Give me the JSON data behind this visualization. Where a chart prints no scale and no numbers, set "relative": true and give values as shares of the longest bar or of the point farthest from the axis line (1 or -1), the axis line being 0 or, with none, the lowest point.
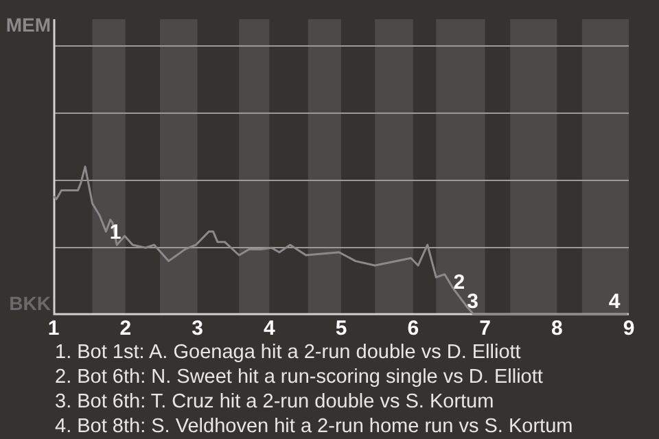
{
  "chart_data": {
    "type": "line",
    "relative": true,
    "x": [
      1,
      1.04,
      1.11,
      1.34,
      1.38,
      1.44,
      1.5,
      1.54,
      1.64,
      1.73,
      1.79,
      1.82,
      1.88,
      1.99,
      2.1,
      2.28,
      2.4,
      2.6,
      2.83,
      2.98,
      3.16,
      3.22,
      3.28,
      3.38,
      3.58,
      3.72,
      3.88,
      4.03,
      4.14,
      4.29,
      4.51,
      4.97,
      5.2,
      5.47,
      5.97,
      6.07,
      6.2,
      6.32,
      6.44,
      6.55,
      6.75,
      6.84,
      8.98
    ],
    "series": [
      {
        "color": "#8a8a8a",
        "values": [
          0.8,
          0.78,
          0.84,
          0.84,
          0.89,
          1,
          0.85,
          0.75,
          0.67,
          0.56,
          0.64,
          0.62,
          0.47,
          0.53,
          0.47,
          0.45,
          0.47,
          0.36,
          0.44,
          0.47,
          0.56,
          0.56,
          0.49,
          0.49,
          0.4,
          0.44,
          0.44,
          0.45,
          0.42,
          0.47,
          0.4,
          0.42,
          0.36,
          0.33,
          0.38,
          0.33,
          0.47,
          0.25,
          0.27,
          0.18,
          0.05,
          0,
          0
        ]
      }
    ],
    "xlim": [
      1,
      9
    ],
    "xticks": [
      1,
      2,
      3,
      4,
      5,
      6,
      7,
      8,
      9
    ],
    "marker": "none",
    "line_style": "solid",
    "legend": false,
    "ref_lines": [
      {
        "axis": "y",
        "value": 0.455,
        "color": "#9a9a9a"
      },
      {
        "axis": "y",
        "value": 0.91,
        "color": "#9a9a9a"
      },
      {
        "axis": "y",
        "value": 1.365,
        "color": "#9a9a9a"
      },
      {
        "axis": "y",
        "value": 1.82,
        "color": "#9a9a9a"
      }
    ],
    "bands": [
      {
        "axis": "x",
        "from": 1.54,
        "to": 2,
        "color": "#4b4a48"
      },
      {
        "axis": "x",
        "from": 2.48,
        "to": 3,
        "color": "#4b4a48"
      },
      {
        "axis": "x",
        "from": 3.58,
        "to": 4,
        "color": "#4b4a48"
      },
      {
        "axis": "x",
        "from": 4.54,
        "to": 5,
        "color": "#4b4a48"
      },
      {
        "axis": "x",
        "from": 5.47,
        "to": 6,
        "color": "#4b4a48"
      },
      {
        "axis": "x",
        "from": 6.32,
        "to": 7,
        "color": "#4b4a48"
      },
      {
        "axis": "x",
        "from": 7.35,
        "to": 8,
        "color": "#4b4a48"
      },
      {
        "axis": "x",
        "from": 8.35,
        "to": 9,
        "color": "#4b4a48"
      }
    ],
    "annotations": [
      {
        "text": "1",
        "x": 1.86,
        "y": 0.47
      },
      {
        "text": "2",
        "x": 6.64,
        "y": 0.13
      },
      {
        "text": "3",
        "x": 6.83,
        "y": 0
      },
      {
        "text": "4",
        "x": 8.8,
        "y": 0
      },
      "MEM",
      "BKK",
      "1. Bot 1st: A. Goenaga hit a 2-run double vs D. Elliott",
      "2. Bot 6th: N. Sweet hit a run-scoring single vs D. Elliott",
      "3. Bot 6th: T. Cruz hit a 2-run double vs S. Kortum",
      "4. Bot 8th: S. Veldhoven hit a 2-run home run vs S. Kortum"
    ]
  }
}
